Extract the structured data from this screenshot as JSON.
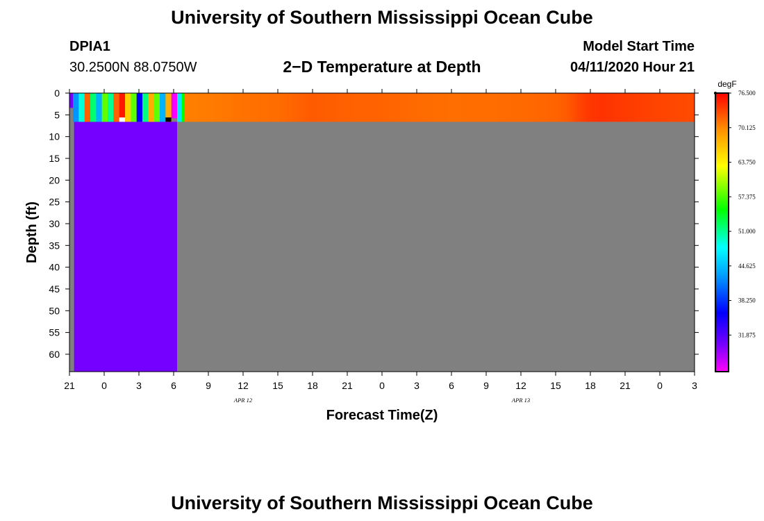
{
  "header": {
    "title": "University of Southern Mississippi Ocean Cube",
    "station_id": "DPIA1",
    "coordinates": "30.2500N 88.0750W",
    "plot_title": "2−D Temperature at Depth",
    "model_start_label": "Model Start Time",
    "model_start_value": "04/11/2020 Hour 21"
  },
  "footer": {
    "title": "University of Southern Mississippi Ocean Cube"
  },
  "colors": {
    "no_data": "#808080",
    "frame": "#000000"
  },
  "chart_data": {
    "type": "heatmap",
    "xlabel": "Forecast Time(Z)",
    "ylabel": "Depth (ft)",
    "x_unit": "hours since 04/11/2020 21Z",
    "x_range": [
      0,
      54
    ],
    "y_range": [
      0,
      64
    ],
    "y_inverted": true,
    "x_tick_labels": [
      {
        "hour": 0,
        "label": "21"
      },
      {
        "hour": 3,
        "label": "0"
      },
      {
        "hour": 6,
        "label": "3"
      },
      {
        "hour": 9,
        "label": "6"
      },
      {
        "hour": 12,
        "label": "9"
      },
      {
        "hour": 15,
        "label": "12"
      },
      {
        "hour": 18,
        "label": "15"
      },
      {
        "hour": 21,
        "label": "18"
      },
      {
        "hour": 24,
        "label": "21"
      },
      {
        "hour": 27,
        "label": "0"
      },
      {
        "hour": 30,
        "label": "3"
      },
      {
        "hour": 33,
        "label": "6"
      },
      {
        "hour": 36,
        "label": "9"
      },
      {
        "hour": 39,
        "label": "12"
      },
      {
        "hour": 42,
        "label": "15"
      },
      {
        "hour": 45,
        "label": "18"
      },
      {
        "hour": 48,
        "label": "21"
      },
      {
        "hour": 51,
        "label": "0"
      },
      {
        "hour": 54,
        "label": "3"
      }
    ],
    "date_labels": [
      {
        "hour": 15,
        "label": "APR 12"
      },
      {
        "hour": 39,
        "label": "APR 13"
      }
    ],
    "y_ticks": [
      0,
      5,
      10,
      15,
      20,
      25,
      30,
      35,
      40,
      45,
      50,
      55,
      60
    ],
    "colorbar": {
      "unit": "degF",
      "min": 25.125,
      "max": 76.5,
      "tick_labels": [
        "76.500",
        "70.125",
        "63.750",
        "57.375",
        "51.000",
        "44.625",
        "38.250",
        "31.875"
      ],
      "stops": [
        {
          "value": 25.125,
          "color": "#ff00ff"
        },
        {
          "value": 30.0,
          "color": "#7a00ff"
        },
        {
          "value": 36.0,
          "color": "#0000ff"
        },
        {
          "value": 43.0,
          "color": "#00a0ff"
        },
        {
          "value": 48.0,
          "color": "#00ffff"
        },
        {
          "value": 55.0,
          "color": "#00ff00"
        },
        {
          "value": 63.0,
          "color": "#ffff00"
        },
        {
          "value": 70.0,
          "color": "#ff8c00"
        },
        {
          "value": 76.5,
          "color": "#ff0000"
        }
      ]
    },
    "grid": false,
    "cells": [
      {
        "x0": 0.0,
        "x1": 0.3,
        "y0": 0,
        "y1": 3.4,
        "temp": 30.2
      },
      {
        "x0": 0.3,
        "x1": 0.8,
        "y0": 0,
        "y1": 3.4,
        "temp": 42.5
      },
      {
        "x0": 0.3,
        "x1": 0.8,
        "y0": 3.4,
        "y1": 6.6,
        "temp": 42.5
      },
      {
        "x0": 0.8,
        "x1": 1.3,
        "y0": 0,
        "y1": 6.6,
        "temp": 49.0
      },
      {
        "x0": 1.3,
        "x1": 1.8,
        "y0": 0,
        "y1": 6.6,
        "temp": 72.0
      },
      {
        "x0": 1.8,
        "x1": 2.3,
        "y0": 0,
        "y1": 6.6,
        "temp": 52.0
      },
      {
        "x0": 2.3,
        "x1": 2.8,
        "y0": 0,
        "y1": 6.6,
        "temp": 44.0
      },
      {
        "x0": 2.8,
        "x1": 3.3,
        "y0": 0,
        "y1": 6.6,
        "temp": 58.0
      },
      {
        "x0": 3.3,
        "x1": 3.8,
        "y0": 0,
        "y1": 6.6,
        "temp": 51.0
      },
      {
        "x0": 3.8,
        "x1": 4.3,
        "y0": 0,
        "y1": 6.6,
        "temp": 72.0
      },
      {
        "x0": 4.3,
        "x1": 4.8,
        "y0": 0,
        "y1": 5.8,
        "temp": 75.5
      },
      {
        "x0": 4.8,
        "x1": 5.3,
        "y0": 0,
        "y1": 6.6,
        "temp": 66.0
      },
      {
        "x0": 5.3,
        "x1": 5.8,
        "y0": 0,
        "y1": 6.6,
        "temp": 58.0
      },
      {
        "x0": 5.8,
        "x1": 6.3,
        "y0": 0,
        "y1": 6.6,
        "temp": 36.0
      },
      {
        "x0": 6.3,
        "x1": 6.8,
        "y0": 0,
        "y1": 6.6,
        "temp": 51.5
      },
      {
        "x0": 6.8,
        "x1": 7.3,
        "y0": 0,
        "y1": 6.6,
        "temp": 68.0
      },
      {
        "x0": 7.3,
        "x1": 7.8,
        "y0": 0,
        "y1": 6.6,
        "temp": 58.0
      },
      {
        "x0": 7.8,
        "x1": 8.3,
        "y0": 0,
        "y1": 6.6,
        "temp": 44.0
      },
      {
        "x0": 8.3,
        "x1": 8.8,
        "y0": 0,
        "y1": 6.6,
        "temp": 68.0
      },
      {
        "x0": 8.8,
        "x1": 9.3,
        "y0": 0,
        "y1": 5.8,
        "temp": 25.5
      },
      {
        "x0": 9.3,
        "x1": 9.7,
        "y0": 0,
        "y1": 6.6,
        "temp": 47.0
      },
      {
        "x0": 9.7,
        "x1": 10.1,
        "y0": 0,
        "y1": 6.6,
        "temp": 55.0
      }
    ],
    "surface_series": {
      "y0": 0,
      "y1": 6.6,
      "hours": [
        9.9,
        12,
        15,
        18,
        21,
        24,
        27,
        30,
        33,
        36,
        39,
        42,
        43,
        44,
        45,
        46,
        47,
        48,
        50,
        52,
        54
      ],
      "temps": [
        70.6,
        70.8,
        71.2,
        71.5,
        72.3,
        72.0,
        71.9,
        71.6,
        71.4,
        71.5,
        71.6,
        71.9,
        72.3,
        73.3,
        74.0,
        74.2,
        74.0,
        73.8,
        73.5,
        73.2,
        73.0
      ]
    },
    "deep_column": {
      "x0": 0.4,
      "x1": 9.3,
      "y0": 6.6,
      "y1": 64,
      "temp": 30.2
    },
    "missing_markers": [
      {
        "x0": 4.3,
        "x1": 4.8,
        "y0": 5.6,
        "y1": 6.6,
        "color": "#ffffff"
      },
      {
        "x0": 8.3,
        "x1": 8.8,
        "y0": 5.6,
        "y1": 6.6,
        "color": "#000000"
      }
    ]
  }
}
